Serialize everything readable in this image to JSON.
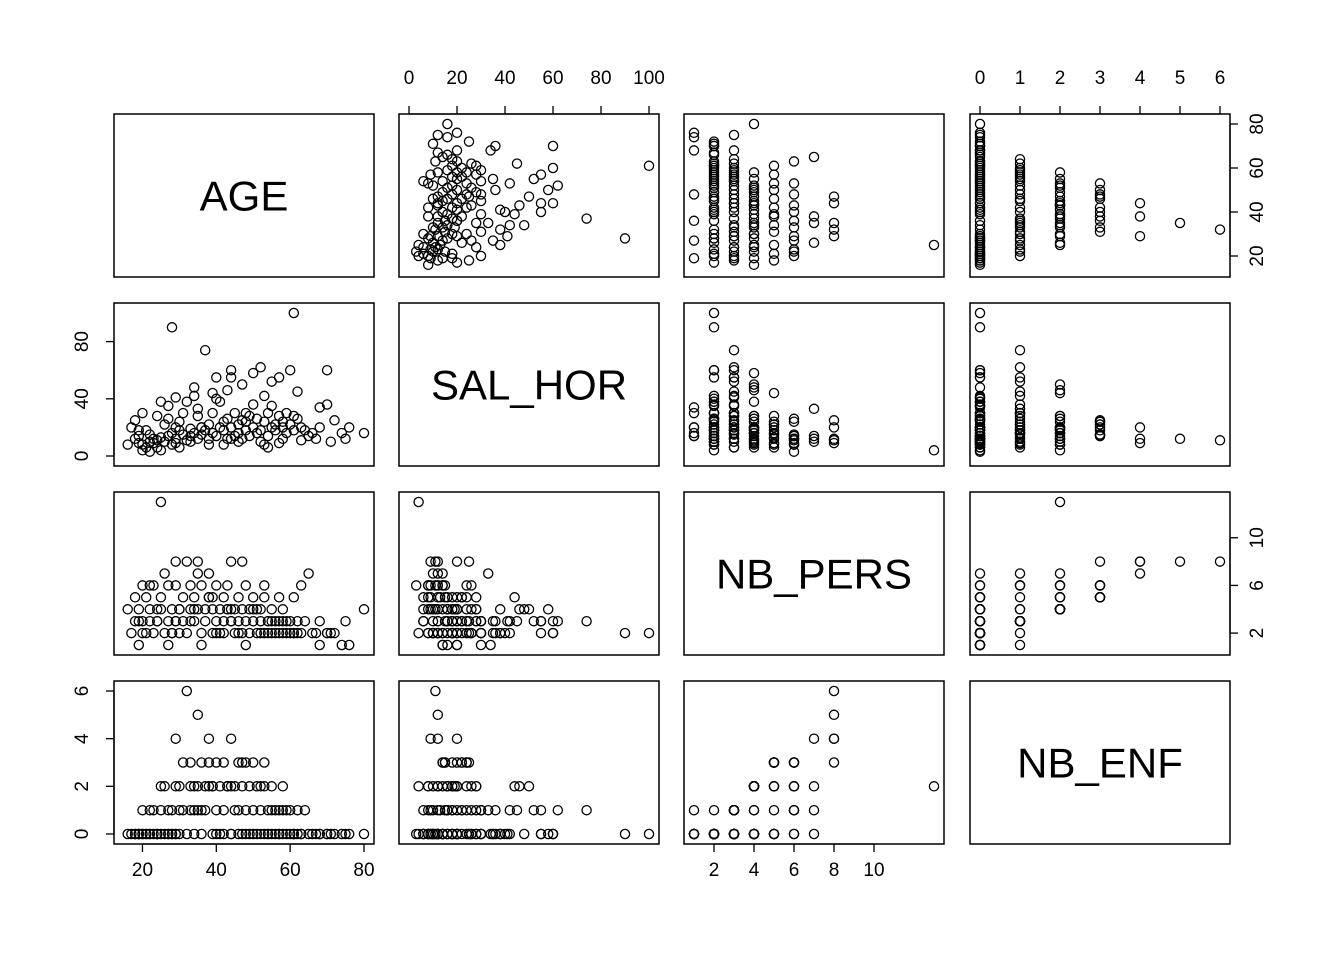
{
  "chart_data": {
    "type": "scatter",
    "title": "",
    "variables": [
      {
        "name": "AGE",
        "range": [
          15,
          80
        ],
        "ticks": [
          20,
          40,
          60,
          80
        ]
      },
      {
        "name": "SAL_HOR",
        "range": [
          0,
          100
        ],
        "ticks": [
          0,
          20,
          40,
          60,
          80,
          100
        ]
      },
      {
        "name": "NB_PERS",
        "range": [
          1,
          13
        ],
        "ticks": [
          2,
          4,
          6,
          8,
          10
        ]
      },
      {
        "name": "NB_ENF",
        "range": [
          0,
          6
        ],
        "ticks": [
          0,
          1,
          2,
          3,
          4,
          5,
          6
        ]
      }
    ],
    "axis_ticks": {
      "bottom": [
        {
          "var": 0,
          "ticks": [
            20,
            40,
            60,
            80
          ],
          "labels": [
            "20",
            "40",
            "60",
            "80"
          ]
        },
        {
          "var": 2,
          "ticks": [
            2,
            4,
            6,
            8,
            10
          ],
          "labels": [
            "2",
            "4",
            "6",
            "8",
            "10"
          ]
        }
      ],
      "top": [
        {
          "var": 1,
          "ticks": [
            0,
            20,
            40,
            60,
            80,
            100
          ],
          "labels": [
            "0",
            "20",
            "40",
            "60",
            "80",
            "100"
          ]
        },
        {
          "var": 3,
          "ticks": [
            0,
            1,
            2,
            3,
            4,
            5,
            6
          ],
          "labels": [
            "0",
            "1",
            "2",
            "3",
            "4",
            "5",
            "6"
          ]
        }
      ],
      "left": [
        {
          "var": 1,
          "ticks": [
            0,
            40,
            80
          ],
          "labels": [
            "0",
            "40",
            "80"
          ]
        },
        {
          "var": 3,
          "ticks": [
            0,
            2,
            4,
            6
          ],
          "labels": [
            "0",
            "2",
            "4",
            "6"
          ]
        }
      ],
      "right": [
        {
          "var": 0,
          "ticks": [
            20,
            40,
            60,
            80
          ],
          "labels": [
            "20",
            "40",
            "60",
            "80"
          ]
        },
        {
          "var": 2,
          "ticks": [
            2,
            6,
            10
          ],
          "labels": [
            "2",
            "6",
            "10"
          ]
        }
      ]
    },
    "observations": [
      [
        16,
        8,
        4,
        0
      ],
      [
        17,
        20,
        2,
        0
      ],
      [
        18,
        25,
        3,
        0
      ],
      [
        18,
        12,
        5,
        0
      ],
      [
        19,
        9,
        4,
        0
      ],
      [
        19,
        14,
        1,
        0
      ],
      [
        20,
        8,
        6,
        1
      ],
      [
        20,
        30,
        3,
        0
      ],
      [
        21,
        18,
        2,
        0
      ],
      [
        21,
        6,
        5,
        0
      ],
      [
        22,
        10,
        4,
        0
      ],
      [
        22,
        15,
        3,
        1
      ],
      [
        23,
        12,
        2,
        0
      ],
      [
        23,
        9,
        6,
        1
      ],
      [
        24,
        28,
        3,
        0
      ],
      [
        24,
        11,
        4,
        0
      ],
      [
        25,
        13,
        5,
        1
      ],
      [
        25,
        38,
        4,
        0
      ],
      [
        26,
        22,
        2,
        0
      ],
      [
        26,
        10,
        7,
        2
      ],
      [
        27,
        35,
        3,
        0
      ],
      [
        27,
        14,
        1,
        0
      ],
      [
        28,
        16,
        4,
        1
      ],
      [
        28,
        90,
        2,
        0
      ],
      [
        29,
        12,
        6,
        2
      ],
      [
        29,
        20,
        3,
        0
      ],
      [
        29,
        9,
        8,
        4
      ],
      [
        30,
        24,
        4,
        2
      ],
      [
        30,
        18,
        2,
        0
      ],
      [
        31,
        15,
        5,
        3
      ],
      [
        31,
        30,
        3,
        1
      ],
      [
        32,
        11,
        8,
        6
      ],
      [
        32,
        38,
        2,
        0
      ],
      [
        33,
        19,
        4,
        2
      ],
      [
        33,
        14,
        6,
        3
      ],
      [
        34,
        42,
        3,
        1
      ],
      [
        34,
        16,
        5,
        2
      ],
      [
        35,
        12,
        8,
        5
      ],
      [
        35,
        28,
        4,
        2
      ],
      [
        36,
        20,
        2,
        0
      ],
      [
        36,
        15,
        6,
        3
      ],
      [
        37,
        74,
        3,
        1
      ],
      [
        37,
        18,
        4,
        2
      ],
      [
        38,
        22,
        5,
        3
      ],
      [
        38,
        12,
        7,
        4
      ],
      [
        39,
        30,
        2,
        0
      ],
      [
        39,
        16,
        4,
        2
      ],
      [
        40,
        55,
        3,
        1
      ],
      [
        40,
        14,
        6,
        3
      ],
      [
        41,
        20,
        4,
        2
      ],
      [
        41,
        38,
        2,
        0
      ],
      [
        42,
        18,
        5,
        3
      ],
      [
        42,
        24,
        3,
        1
      ],
      [
        43,
        26,
        4,
        2
      ],
      [
        43,
        12,
        6,
        2
      ],
      [
        44,
        55,
        3,
        0
      ],
      [
        44,
        20,
        8,
        4
      ],
      [
        45,
        14,
        4,
        2
      ],
      [
        45,
        30,
        2,
        1
      ],
      [
        46,
        22,
        5,
        3
      ],
      [
        46,
        16,
        3,
        1
      ],
      [
        47,
        50,
        4,
        2
      ],
      [
        47,
        12,
        2,
        0
      ],
      [
        48,
        24,
        6,
        3
      ],
      [
        48,
        18,
        3,
        1
      ],
      [
        49,
        28,
        4,
        2
      ],
      [
        49,
        14,
        2,
        0
      ],
      [
        50,
        20,
        5,
        3
      ],
      [
        50,
        36,
        3,
        1
      ],
      [
        51,
        16,
        4,
        2
      ],
      [
        51,
        26,
        2,
        0
      ],
      [
        52,
        62,
        3,
        1
      ],
      [
        52,
        18,
        4,
        2
      ],
      [
        53,
        42,
        2,
        0
      ],
      [
        53,
        24,
        5,
        3
      ],
      [
        54,
        30,
        3,
        1
      ],
      [
        54,
        14,
        2,
        0
      ],
      [
        55,
        20,
        4,
        2
      ],
      [
        55,
        35,
        2,
        0
      ],
      [
        56,
        22,
        3,
        1
      ],
      [
        56,
        18,
        2,
        0
      ],
      [
        57,
        55,
        2,
        0
      ],
      [
        57,
        28,
        3,
        1
      ],
      [
        58,
        24,
        2,
        0
      ],
      [
        58,
        20,
        4,
        2
      ],
      [
        59,
        30,
        2,
        0
      ],
      [
        59,
        16,
        3,
        1
      ],
      [
        60,
        60,
        2,
        0
      ],
      [
        60,
        22,
        3,
        1
      ],
      [
        61,
        100,
        2,
        0
      ],
      [
        61,
        18,
        2,
        0
      ],
      [
        62,
        45,
        3,
        1
      ],
      [
        62,
        26,
        2,
        0
      ],
      [
        63,
        20,
        2,
        0
      ],
      [
        64,
        18,
        3,
        1
      ],
      [
        65,
        14,
        7,
        0
      ],
      [
        66,
        16,
        2,
        0
      ],
      [
        67,
        12,
        2,
        0
      ],
      [
        68,
        20,
        3,
        0
      ],
      [
        70,
        60,
        2,
        0
      ],
      [
        70,
        36,
        2,
        0
      ],
      [
        71,
        10,
        2,
        0
      ],
      [
        74,
        16,
        1,
        0
      ],
      [
        75,
        12,
        3,
        0
      ],
      [
        76,
        20,
        1,
        0
      ],
      [
        80,
        16,
        4,
        0
      ],
      [
        28,
        8,
        2,
        0
      ],
      [
        33,
        10,
        3,
        1
      ],
      [
        44,
        12,
        4,
        2
      ],
      [
        52,
        10,
        2,
        0
      ],
      [
        24,
        6,
        3,
        0
      ],
      [
        38,
        8,
        5,
        2
      ],
      [
        46,
        10,
        2,
        0
      ],
      [
        58,
        12,
        3,
        1
      ],
      [
        20,
        4,
        2,
        0
      ],
      [
        30,
        6,
        4,
        1
      ],
      [
        42,
        8,
        2,
        0
      ],
      [
        54,
        6,
        3,
        0
      ],
      [
        25,
        4,
        13,
        2
      ],
      [
        36,
        20,
        1,
        1
      ],
      [
        22,
        3,
        6,
        0
      ],
      [
        48,
        30,
        1,
        0
      ],
      [
        57,
        9,
        5,
        0
      ],
      [
        63,
        11,
        6,
        0
      ],
      [
        34,
        48,
        4,
        0
      ],
      [
        40,
        40,
        2,
        0
      ],
      [
        68,
        34,
        1,
        0
      ],
      [
        72,
        25,
        2,
        0
      ],
      [
        19,
        18,
        3,
        0
      ],
      [
        44,
        60,
        3,
        0
      ],
      [
        50,
        58,
        4,
        0
      ],
      [
        27,
        26,
        6,
        1
      ],
      [
        39,
        44,
        5,
        2
      ],
      [
        47,
        25,
        8,
        3
      ],
      [
        53,
        8,
        6,
        2
      ],
      [
        61,
        28,
        5,
        0
      ],
      [
        35,
        33,
        7,
        1
      ],
      [
        29,
        41,
        3,
        0
      ],
      [
        43,
        46,
        4,
        2
      ],
      [
        55,
        52,
        3,
        1
      ]
    ]
  }
}
